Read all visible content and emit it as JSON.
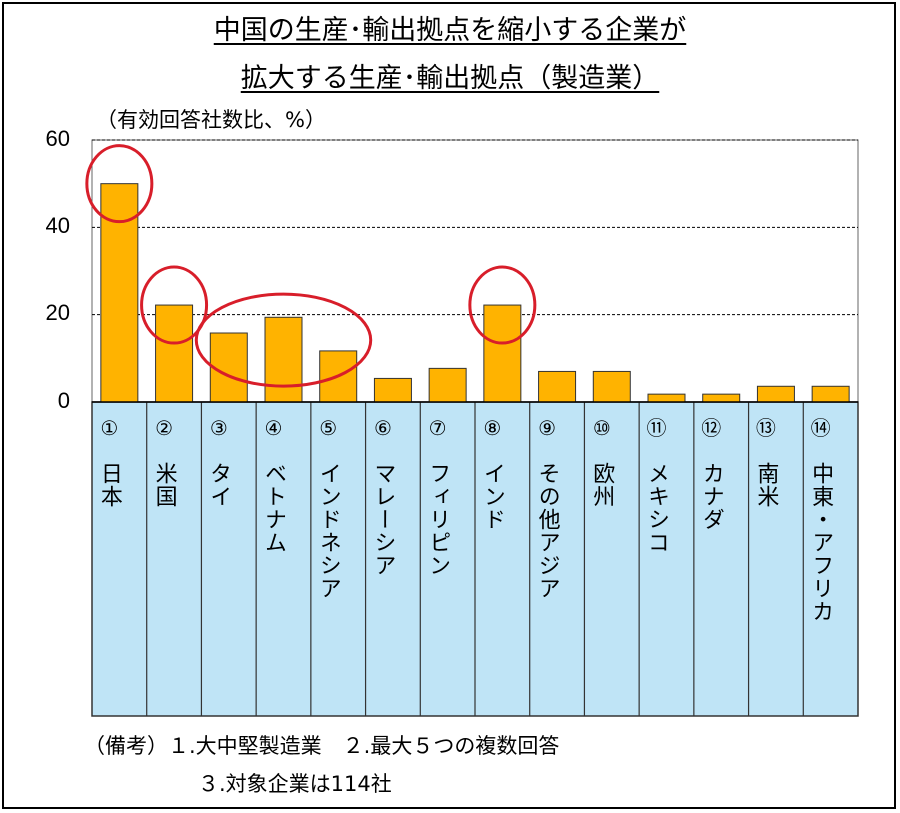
{
  "chart_data": {
    "type": "bar",
    "title_line1": "中国の生産･輸出拠点を縮小する企業が",
    "title_line2": "拡大する生産･輸出拠点（製造業）",
    "ylabel": "（有効回答社数比、%）",
    "ylim": [
      0,
      60
    ],
    "yticks": [
      "0",
      "20",
      "40",
      "60"
    ],
    "grid": true,
    "categories": [
      {
        "num": "①",
        "name": "日本"
      },
      {
        "num": "②",
        "name": "米国"
      },
      {
        "num": "③",
        "name": "タイ"
      },
      {
        "num": "④",
        "name": "ベトナム"
      },
      {
        "num": "⑤",
        "name": "インドネシア"
      },
      {
        "num": "⑥",
        "name": "マレーシア"
      },
      {
        "num": "⑦",
        "name": "フィリピン"
      },
      {
        "num": "⑧",
        "name": "インド"
      },
      {
        "num": "⑨",
        "name": "その他アジア"
      },
      {
        "num": "⑩",
        "name": "欧州"
      },
      {
        "num": "⑪",
        "name": "メキシコ"
      },
      {
        "num": "⑫",
        "name": "カナダ"
      },
      {
        "num": "⑬",
        "name": "南米"
      },
      {
        "num": "⑭",
        "name": "中東・アフリカ"
      }
    ],
    "values": [
      50,
      22.2,
      15.8,
      19.4,
      11.7,
      5.4,
      7.7,
      22.2,
      7.0,
      7.0,
      1.8,
      1.8,
      3.6,
      3.6
    ],
    "highlighted_groups": [
      [
        0
      ],
      [
        1
      ],
      [
        2,
        3,
        4
      ],
      [
        7
      ]
    ],
    "colors": {
      "bar": "#FFB300",
      "bar_border": "#333333",
      "label_bg": "#BFE4F6",
      "circle": "#D81E2A",
      "grid": "#000000"
    }
  },
  "notes": {
    "line1": "（備考）１.大中堅製造業　２.最大５つの複数回答",
    "line2": "３.対象企業は114社"
  }
}
